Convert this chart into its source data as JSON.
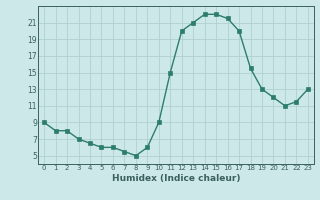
{
  "x": [
    0,
    1,
    2,
    3,
    4,
    5,
    6,
    7,
    8,
    9,
    10,
    11,
    12,
    13,
    14,
    15,
    16,
    17,
    18,
    19,
    20,
    21,
    22,
    23
  ],
  "y": [
    9,
    8,
    8,
    7,
    6.5,
    6,
    6,
    5.5,
    5,
    6,
    9,
    15,
    20,
    21,
    22,
    22,
    21.5,
    20,
    15.5,
    13,
    12,
    11,
    11.5,
    13
  ],
  "xlabel": "Humidex (Indice chaleur)",
  "ylim": [
    4,
    23
  ],
  "xlim": [
    -0.5,
    23.5
  ],
  "yticks": [
    5,
    7,
    9,
    11,
    13,
    15,
    17,
    19,
    21
  ],
  "xticks": [
    0,
    1,
    2,
    3,
    4,
    5,
    6,
    7,
    8,
    9,
    10,
    11,
    12,
    13,
    14,
    15,
    16,
    17,
    18,
    19,
    20,
    21,
    22,
    23
  ],
  "line_color": "#2d7d6f",
  "marker_color": "#2d7d6f",
  "bg_color": "#cde8e8",
  "grid_color": "#b0cfcf",
  "axis_color": "#3a6060"
}
